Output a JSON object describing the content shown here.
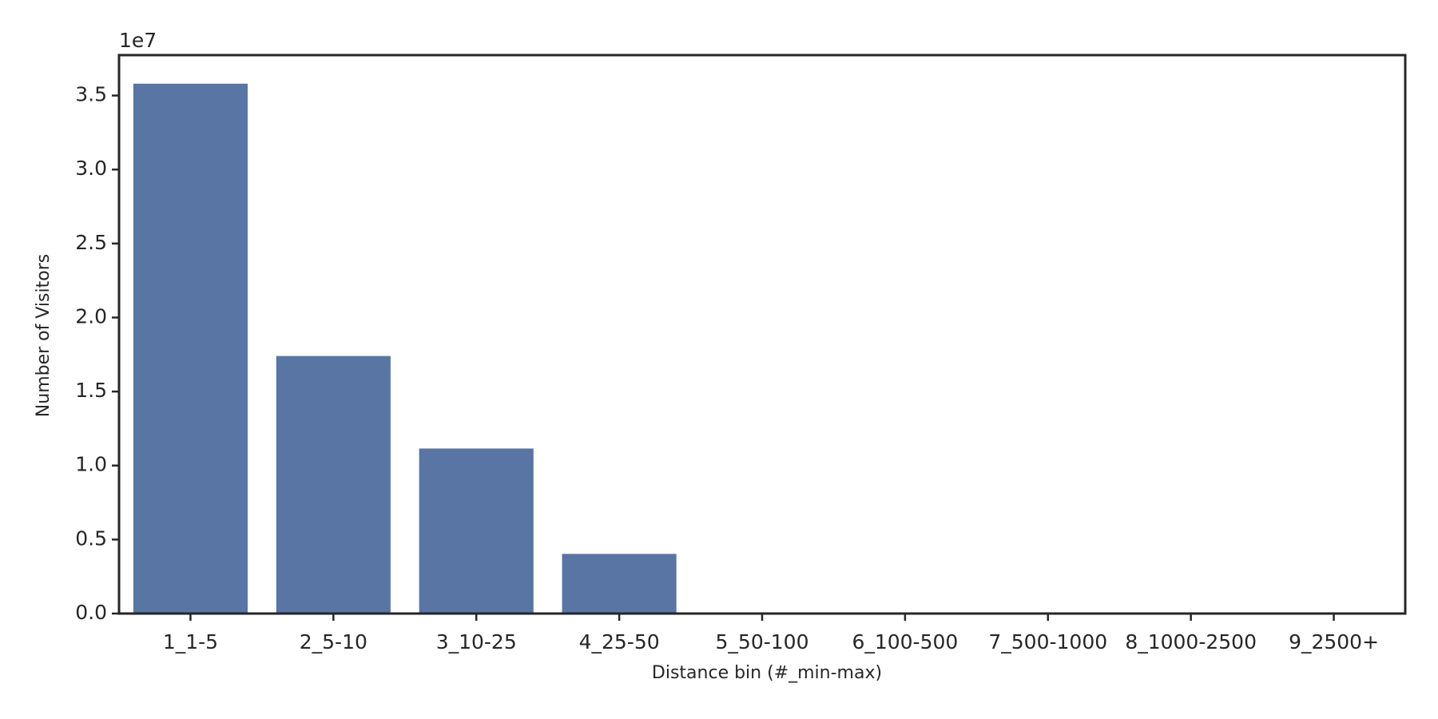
{
  "chart_data": {
    "type": "bar",
    "x_label": "Distance bin (#_min-max)",
    "y_label": "Number of Visitors",
    "y_offset_label": "1e7",
    "categories": [
      "1_1-5",
      "2_5-10",
      "3_10-25",
      "4_25-50",
      "5_50-100",
      "6_100-500",
      "7_500-1000",
      "8_1000-2500",
      "9_2500+"
    ],
    "values": [
      35800000,
      17400000,
      11150000,
      4030000,
      0,
      0,
      0,
      0,
      0
    ],
    "color": "#5975a4",
    "ylim": [
      0,
      37730000
    ],
    "yticks": [
      {
        "value": 0,
        "label": "0.0"
      },
      {
        "value": 5000000,
        "label": "0.5"
      },
      {
        "value": 10000000,
        "label": "1.0"
      },
      {
        "value": 15000000,
        "label": "1.5"
      },
      {
        "value": 20000000,
        "label": "2.0"
      },
      {
        "value": 25000000,
        "label": "2.5"
      },
      {
        "value": 30000000,
        "label": "3.0"
      },
      {
        "value": 35000000,
        "label": "3.5"
      }
    ],
    "grid": false
  }
}
